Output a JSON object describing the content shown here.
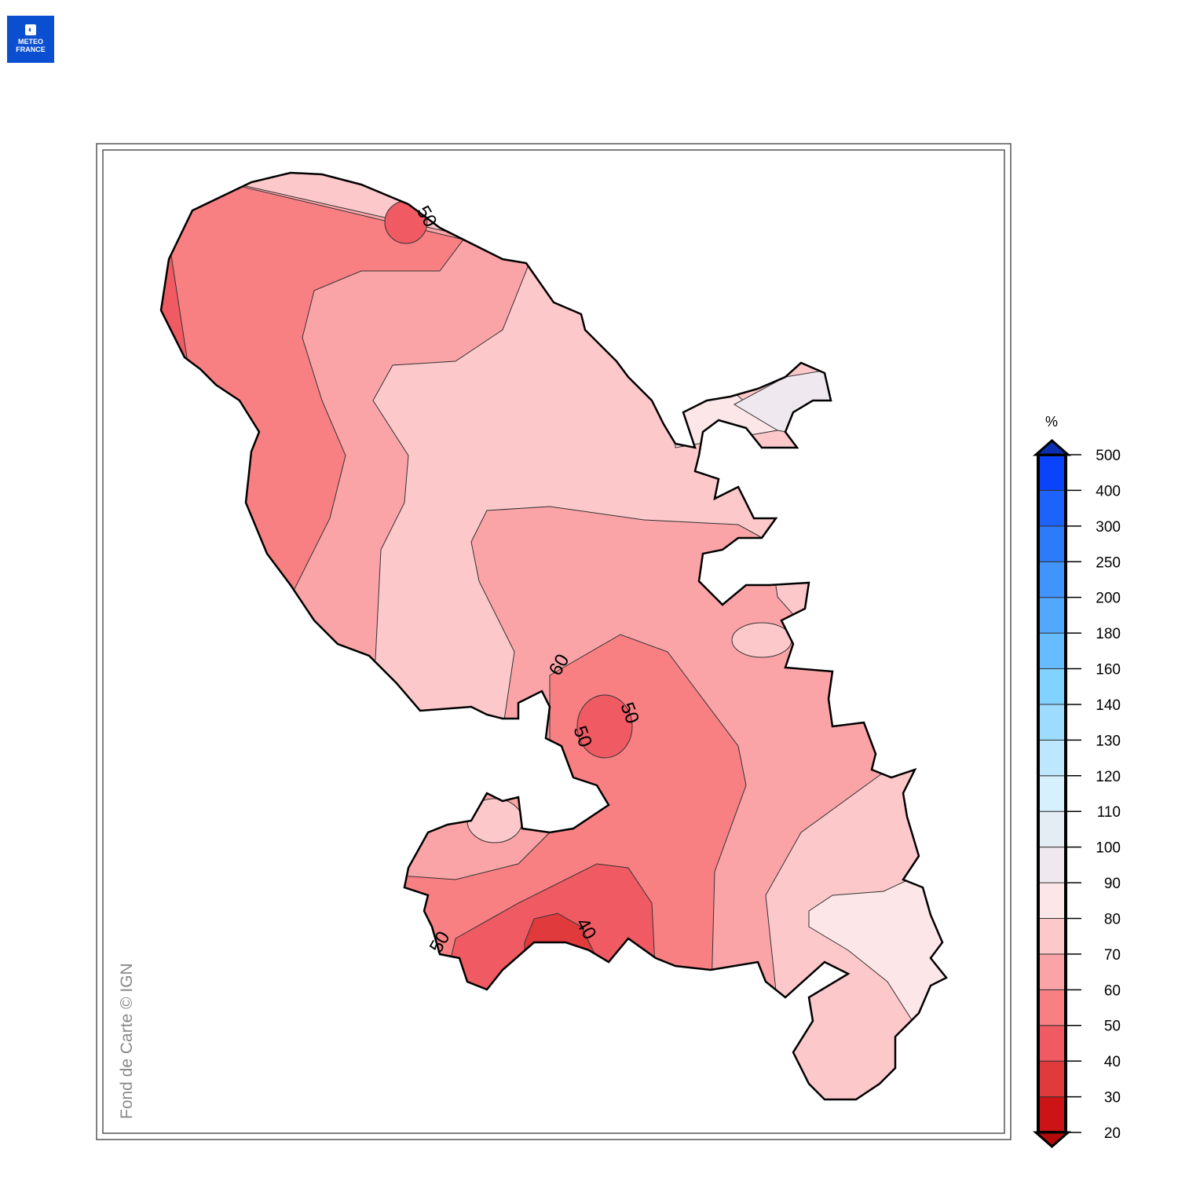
{
  "logo": {
    "line1": "METEO",
    "line2": "FRANCE"
  },
  "attribution": "Fond de Carte © IGN",
  "legend": {
    "unit": "%",
    "ticks": [
      "20",
      "30",
      "40",
      "50",
      "60",
      "70",
      "80",
      "90",
      "100",
      "110",
      "120",
      "130",
      "140",
      "160",
      "180",
      "200",
      "250",
      "300",
      "400",
      "500"
    ],
    "colors": [
      "#cc1417",
      "#e03a3c",
      "#f05a62",
      "#f88083",
      "#fba4a7",
      "#fcc8ca",
      "#fce6e7",
      "#efe9ef",
      "#e4ecf4",
      "#d6f0fe",
      "#bde7fe",
      "#9ddcff",
      "#82d2ff",
      "#66bcff",
      "#52a8fd",
      "#3f95fb",
      "#2c7cfa",
      "#1d62fb",
      "#0b43fb"
    ],
    "arrow_low_color": "#b30a0c",
    "arrow_high_color": "#0a2fb0"
  },
  "contour_labels": [
    "60",
    "50",
    "50",
    "40",
    "50",
    "50"
  ]
}
